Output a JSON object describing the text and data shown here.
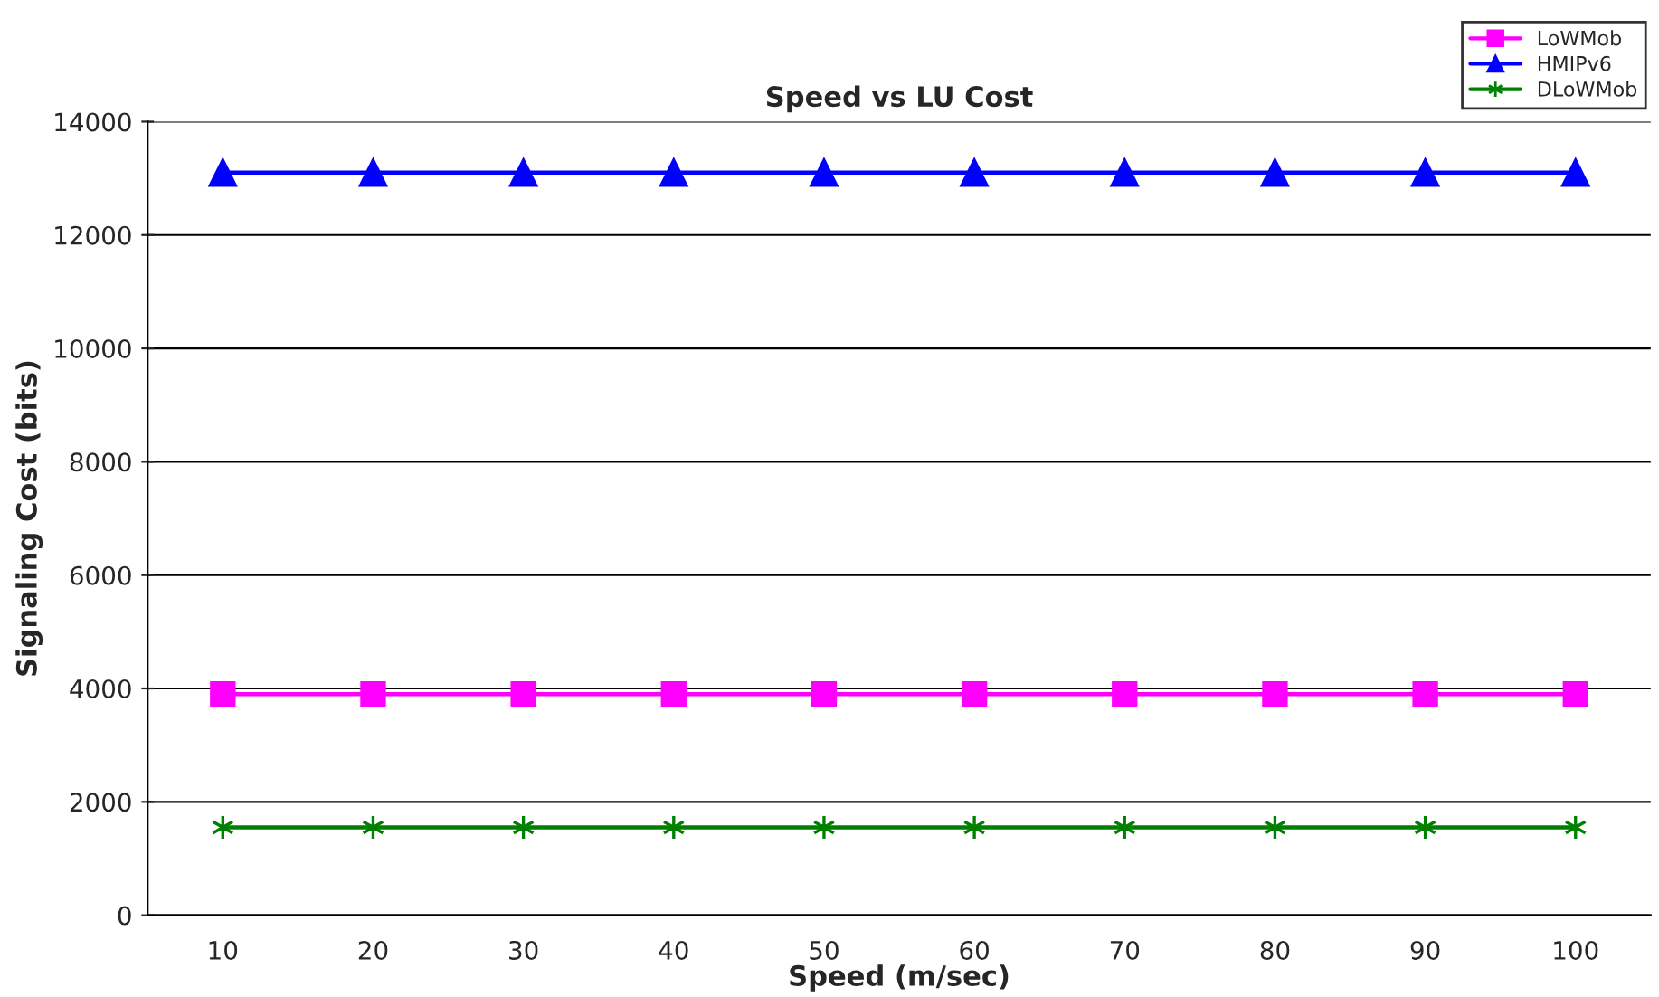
{
  "chart_data": {
    "type": "line",
    "title": "Speed vs LU Cost",
    "xlabel": "Speed (m/sec)",
    "ylabel": "Signaling Cost (bits)",
    "categories": [
      "10",
      "20",
      "30",
      "40",
      "50",
      "60",
      "70",
      "80",
      "90",
      "100"
    ],
    "series": [
      {
        "name": "LoWMob",
        "color": "#ff00ff",
        "marker": "square",
        "values": [
          3900,
          3900,
          3900,
          3900,
          3900,
          3900,
          3900,
          3900,
          3900,
          3900
        ]
      },
      {
        "name": "HMIPv6",
        "color": "#0000ff",
        "marker": "triangle",
        "values": [
          13100,
          13100,
          13100,
          13100,
          13100,
          13100,
          13100,
          13100,
          13100,
          13100
        ]
      },
      {
        "name": "DLoWMob",
        "color": "#008000",
        "marker": "cross",
        "values": [
          1550,
          1550,
          1550,
          1550,
          1550,
          1550,
          1550,
          1550,
          1550,
          1550
        ]
      }
    ],
    "ylim": [
      0,
      14000
    ],
    "yticks": [
      0,
      2000,
      4000,
      6000,
      8000,
      10000,
      12000,
      14000
    ],
    "grid": "y",
    "legend": "top right",
    "line_style": "solid"
  }
}
